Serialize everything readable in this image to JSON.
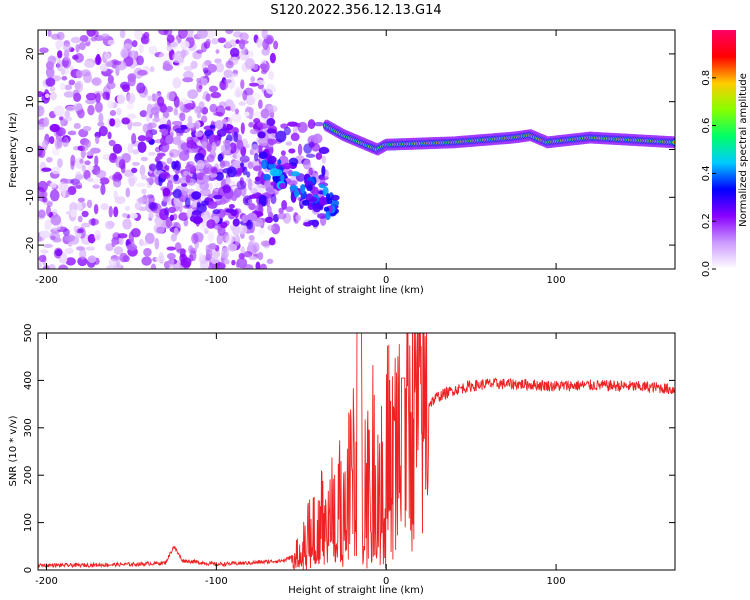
{
  "figure_title": "S120.2022.356.12.13.G14",
  "chart_data": [
    {
      "type": "heatmap",
      "title": "",
      "xlabel": "Height of straight line (km)",
      "ylabel": "Frequency (Hz)",
      "xlim": [
        -205,
        170
      ],
      "ylim": [
        -25,
        25
      ],
      "x_ticks": [
        -200,
        -100,
        0,
        100
      ],
      "y_ticks": [
        -20,
        -10,
        0,
        10,
        20
      ],
      "colorbar": {
        "label": "Normalized spectral amplitude",
        "range": [
          0,
          1
        ],
        "ticks": [
          0.0,
          0.2,
          0.4,
          0.6,
          0.8
        ],
        "colors": [
          "#ffffff",
          "#cc99ff",
          "#8800ff",
          "#0000ff",
          "#00ccff",
          "#00ff66",
          "#88ff00",
          "#ffcc00",
          "#ff0000",
          "#ff0066"
        ]
      },
      "ridge": [
        {
          "x": -35,
          "y": 5
        },
        {
          "x": -25,
          "y": 3
        },
        {
          "x": -15,
          "y": 1.5
        },
        {
          "x": -5,
          "y": 0
        },
        {
          "x": 0,
          "y": 1
        },
        {
          "x": 40,
          "y": 1.5
        },
        {
          "x": 75,
          "y": 2.5
        },
        {
          "x": 85,
          "y": 3.0
        },
        {
          "x": 95,
          "y": 1.5
        },
        {
          "x": 120,
          "y": 2.5
        },
        {
          "x": 170,
          "y": 1.5
        }
      ]
    },
    {
      "type": "line",
      "title": "",
      "xlabel": "Height of straight line (km)",
      "ylabel": "SNR (10 * v/v)",
      "xlim": [
        -205,
        170
      ],
      "ylim": [
        0,
        500
      ],
      "x_ticks": [
        -200,
        -100,
        0,
        100
      ],
      "y_ticks": [
        0,
        100,
        200,
        300,
        400,
        500
      ],
      "series": [
        {
          "color": "#ee2222",
          "x": [
            -205,
            -180,
            -150,
            -130,
            -125,
            -120,
            -100,
            -80,
            -60,
            -50,
            -45,
            -40,
            -35,
            -30,
            -25,
            -20,
            -17,
            -15,
            -12,
            -10,
            -5,
            0,
            5,
            10,
            15,
            20,
            25,
            30,
            40,
            50,
            60,
            80,
            100,
            120,
            140,
            160,
            170
          ],
          "y": [
            10,
            10,
            12,
            15,
            50,
            20,
            12,
            15,
            20,
            40,
            90,
            110,
            120,
            130,
            160,
            200,
            230,
            180,
            200,
            220,
            240,
            250,
            280,
            270,
            310,
            330,
            350,
            365,
            380,
            388,
            393,
            392,
            388,
            390,
            388,
            385,
            380
          ]
        }
      ]
    }
  ]
}
